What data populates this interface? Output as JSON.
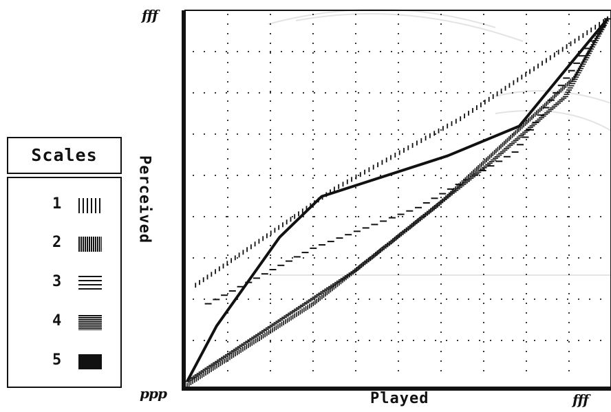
{
  "legend": {
    "title": "Scales",
    "items": [
      {
        "number": "1",
        "pattern": "sparse-vertical"
      },
      {
        "number": "2",
        "pattern": "dense-vertical"
      },
      {
        "number": "3",
        "pattern": "sparse-horizontal"
      },
      {
        "number": "4",
        "pattern": "dense-horizontal"
      },
      {
        "number": "5",
        "pattern": "solid"
      }
    ]
  },
  "chart_data": {
    "type": "line",
    "xlabel": "Played",
    "ylabel": "Perceived",
    "x_tick_labels": {
      "min": "ppp",
      "max": "fff"
    },
    "y_tick_labels": {
      "min": "ppp",
      "max": "fff"
    },
    "xlim": [
      0,
      1
    ],
    "ylim": [
      0,
      1
    ],
    "grid": true,
    "grid_style": "dotted",
    "legend_placement": "left",
    "series": [
      {
        "name": "1",
        "style": "sparse-vertical",
        "points": [
          [
            0.02,
            0.27
          ],
          [
            0.35,
            0.53
          ],
          [
            0.65,
            0.72
          ],
          [
            1.0,
            0.99
          ]
        ]
      },
      {
        "name": "2",
        "style": "dense-vertical",
        "points": [
          [
            0.0,
            0.0
          ],
          [
            0.3,
            0.22
          ],
          [
            0.6,
            0.49
          ],
          [
            0.92,
            0.83
          ],
          [
            1.0,
            0.99
          ]
        ]
      },
      {
        "name": "3",
        "style": "sparse-horizontal",
        "points": [
          [
            0.05,
            0.22
          ],
          [
            0.3,
            0.37
          ],
          [
            0.55,
            0.48
          ],
          [
            0.78,
            0.63
          ],
          [
            1.0,
            0.99
          ]
        ]
      },
      {
        "name": "4",
        "style": "dense-horizontal",
        "points": [
          [
            0.0,
            0.01
          ],
          [
            0.4,
            0.31
          ],
          [
            0.72,
            0.6
          ],
          [
            0.9,
            0.78
          ],
          [
            1.0,
            0.99
          ]
        ]
      },
      {
        "name": "5",
        "style": "solid",
        "points": [
          [
            0.0,
            0.01
          ],
          [
            0.07,
            0.16
          ],
          [
            0.22,
            0.4
          ],
          [
            0.32,
            0.51
          ],
          [
            0.62,
            0.62
          ],
          [
            0.79,
            0.7
          ],
          [
            0.92,
            0.88
          ],
          [
            1.0,
            0.99
          ]
        ]
      }
    ]
  }
}
